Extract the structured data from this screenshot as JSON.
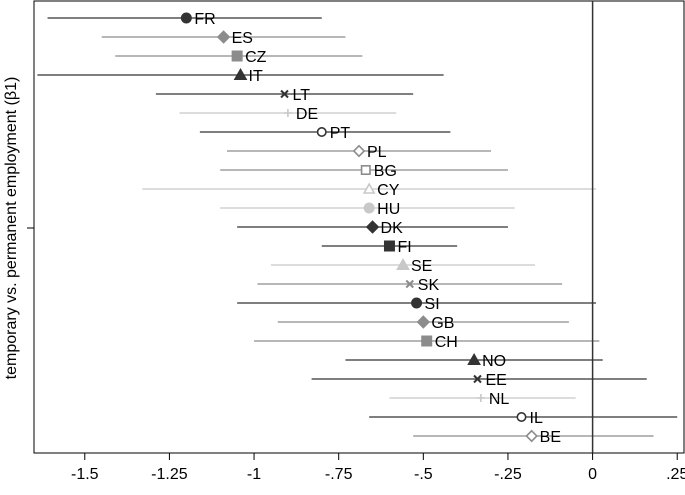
{
  "chart_data": {
    "type": "scatter",
    "subtype": "coefficient-plot-with-confidence-intervals",
    "title": "",
    "xlabel": "",
    "ylabel": "temporary vs. permanent employment (β1)",
    "xlim": [
      -1.65,
      0.27
    ],
    "x_ticks": [
      -1.5,
      -1.25,
      -1,
      -0.75,
      -0.5,
      -0.25,
      0,
      0.25
    ],
    "x_tick_labels": [
      "-1.5",
      "-1.25",
      "-1",
      "-.75",
      "-.5",
      "-.25",
      "0",
      ".25"
    ],
    "reference_line_x": 0,
    "grid": false,
    "legend": "none",
    "colors": {
      "dark": "#333333",
      "mid": "#8c8c8c",
      "light": "#c8c8c8"
    },
    "series": [
      {
        "name": "FR",
        "estimate": -1.2,
        "ci_low": -1.61,
        "ci_high": -0.8,
        "marker": "circle",
        "tone": "dark"
      },
      {
        "name": "ES",
        "estimate": -1.09,
        "ci_low": -1.45,
        "ci_high": -0.73,
        "marker": "diamond",
        "tone": "mid"
      },
      {
        "name": "CZ",
        "estimate": -1.05,
        "ci_low": -1.41,
        "ci_high": -0.68,
        "marker": "square",
        "tone": "mid"
      },
      {
        "name": "IT",
        "estimate": -1.04,
        "ci_low": -1.64,
        "ci_high": -0.44,
        "marker": "triangle",
        "tone": "dark"
      },
      {
        "name": "LT",
        "estimate": -0.91,
        "ci_low": -1.29,
        "ci_high": -0.53,
        "marker": "x",
        "tone": "dark"
      },
      {
        "name": "DE",
        "estimate": -0.9,
        "ci_low": -1.22,
        "ci_high": -0.58,
        "marker": "plus",
        "tone": "light"
      },
      {
        "name": "PT",
        "estimate": -0.8,
        "ci_low": -1.16,
        "ci_high": -0.42,
        "marker": "circle-open",
        "tone": "dark"
      },
      {
        "name": "PL",
        "estimate": -0.69,
        "ci_low": -1.08,
        "ci_high": -0.3,
        "marker": "diamond-open",
        "tone": "mid"
      },
      {
        "name": "BG",
        "estimate": -0.67,
        "ci_low": -1.1,
        "ci_high": -0.25,
        "marker": "square-open",
        "tone": "mid"
      },
      {
        "name": "CY",
        "estimate": -0.66,
        "ci_low": -1.33,
        "ci_high": 0.01,
        "marker": "triangle-open",
        "tone": "light"
      },
      {
        "name": "HU",
        "estimate": -0.66,
        "ci_low": -1.1,
        "ci_high": -0.23,
        "marker": "circle",
        "tone": "light"
      },
      {
        "name": "DK",
        "estimate": -0.65,
        "ci_low": -1.05,
        "ci_high": -0.25,
        "marker": "diamond",
        "tone": "dark"
      },
      {
        "name": "FI",
        "estimate": -0.6,
        "ci_low": -0.8,
        "ci_high": -0.4,
        "marker": "square",
        "tone": "dark"
      },
      {
        "name": "SE",
        "estimate": -0.56,
        "ci_low": -0.95,
        "ci_high": -0.17,
        "marker": "triangle",
        "tone": "light"
      },
      {
        "name": "SK",
        "estimate": -0.54,
        "ci_low": -0.99,
        "ci_high": -0.09,
        "marker": "x",
        "tone": "mid"
      },
      {
        "name": "SI",
        "estimate": -0.52,
        "ci_low": -1.05,
        "ci_high": 0.01,
        "marker": "circle",
        "tone": "dark"
      },
      {
        "name": "GB",
        "estimate": -0.5,
        "ci_low": -0.93,
        "ci_high": -0.07,
        "marker": "diamond",
        "tone": "mid"
      },
      {
        "name": "CH",
        "estimate": -0.49,
        "ci_low": -1.0,
        "ci_high": 0.02,
        "marker": "square",
        "tone": "mid"
      },
      {
        "name": "NO",
        "estimate": -0.35,
        "ci_low": -0.73,
        "ci_high": 0.03,
        "marker": "triangle",
        "tone": "dark"
      },
      {
        "name": "EE",
        "estimate": -0.34,
        "ci_low": -0.83,
        "ci_high": 0.16,
        "marker": "x",
        "tone": "dark"
      },
      {
        "name": "NL",
        "estimate": -0.33,
        "ci_low": -0.6,
        "ci_high": -0.05,
        "marker": "plus",
        "tone": "light"
      },
      {
        "name": "IL",
        "estimate": -0.21,
        "ci_low": -0.66,
        "ci_high": 0.25,
        "marker": "circle-open",
        "tone": "dark"
      },
      {
        "name": "BE",
        "estimate": -0.18,
        "ci_low": -0.53,
        "ci_high": 0.18,
        "marker": "diamond-open",
        "tone": "mid"
      }
    ]
  }
}
